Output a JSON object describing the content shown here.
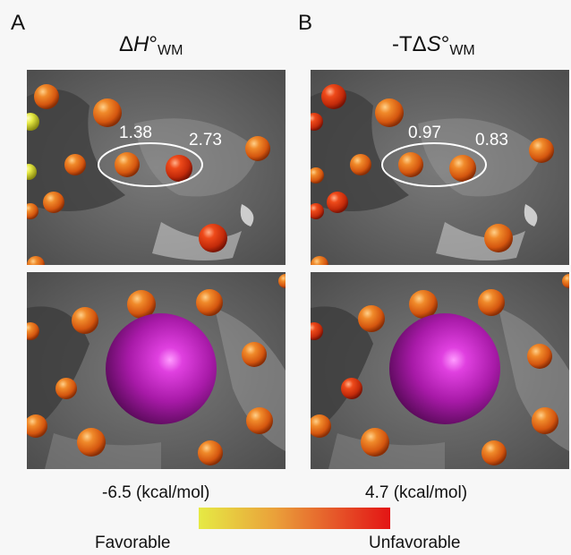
{
  "panels": [
    {
      "letter": "A",
      "title_prefix": "Δ",
      "title_symbol": "H",
      "title_suffix": "°",
      "title_subscript": "WM",
      "value_1": "1.38",
      "value_2": "2.73"
    },
    {
      "letter": "B",
      "title_prefix": "-TΔ",
      "title_symbol": "S",
      "title_suffix": "°",
      "title_subscript": "WM",
      "value_1": "0.97",
      "value_2": "0.83"
    }
  ],
  "scale": {
    "min_label": "-6.5 (kcal/mol)",
    "max_label": "4.7 (kcal/mol)",
    "low_end_label": "Favorable",
    "high_end_label": "Unfavorable",
    "colors": [
      "#e6ea44",
      "#eaa03a",
      "#e65a2a",
      "#e31414"
    ]
  },
  "colors": {
    "surface": "#5e5e5e",
    "ion_sphere": "#b020b0",
    "water_orange": "#e8661c",
    "water_red": "#d82f12",
    "water_yellow": "#e6ea44"
  }
}
